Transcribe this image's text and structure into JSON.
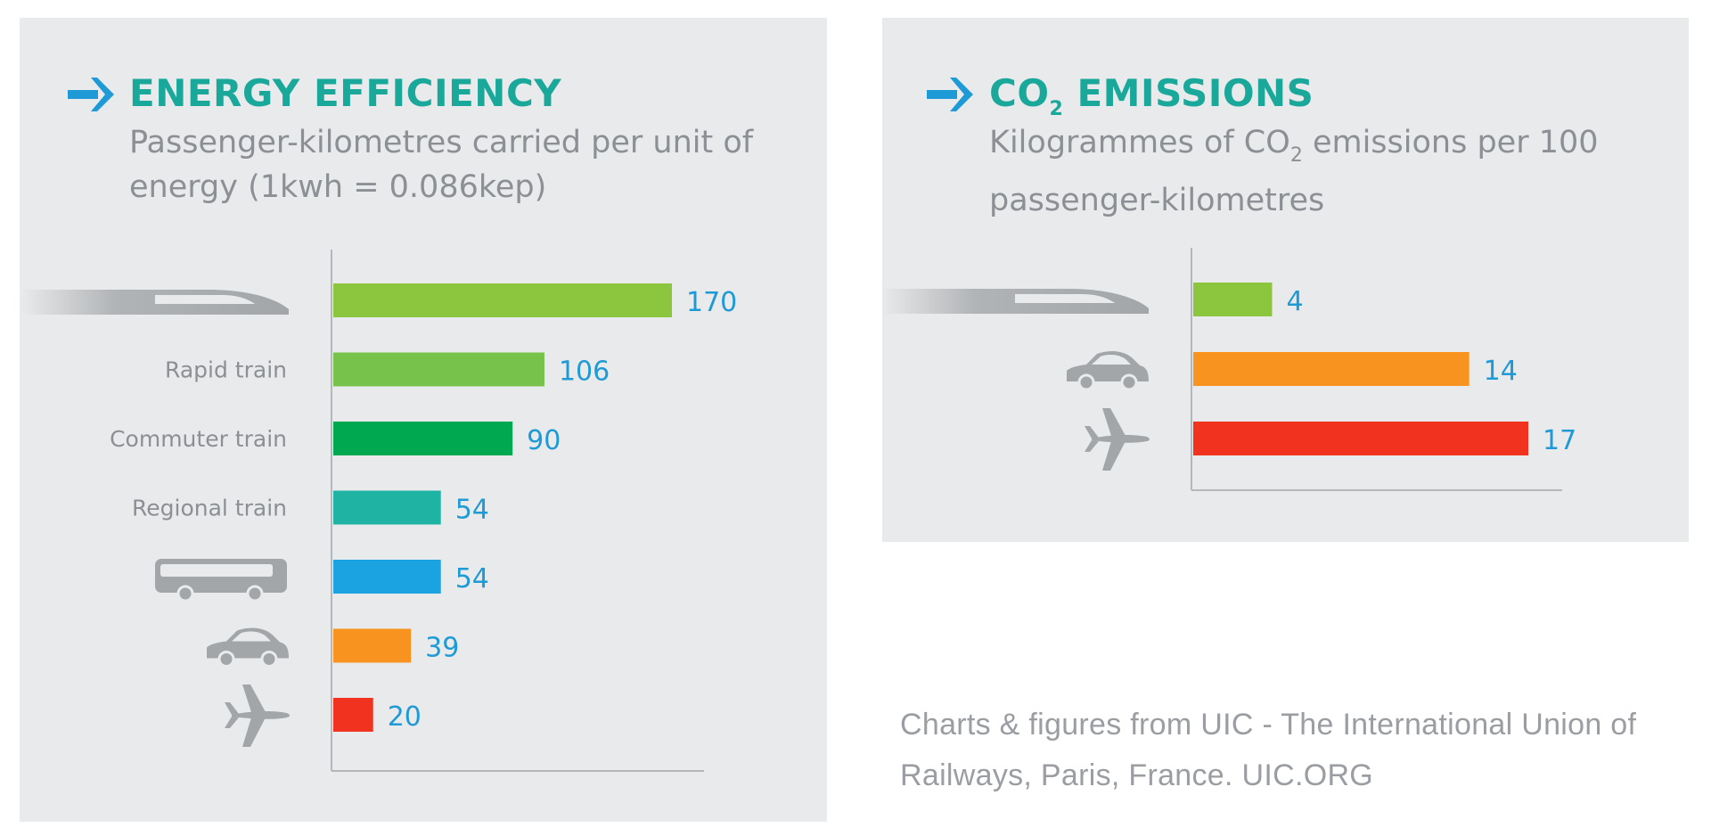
{
  "left_panel": {
    "title": "ENERGY EFFICIENCY",
    "subtitle": "Passenger-kilometres carried per unit of energy (1kwh = 0.086kep)"
  },
  "right_panel": {
    "title_prefix": "CO",
    "title_sub": "2",
    "title_suffix": " EMISSIONS",
    "subtitle_prefix": "Kilogrammes of CO",
    "subtitle_sub": "2",
    "subtitle_suffix": " emissions per 100 passenger-kilometres"
  },
  "source_note": "Charts & figures from UIC - The International Union of Railways, Paris, France.  UIC.ORG",
  "colors": {
    "panel_bg": "#e9eaeb",
    "title": "#1aa89b",
    "arrow": "#1e9ad6",
    "value_label": "#1e9ad6",
    "category_label": "#8c8f93",
    "icon": "#a3a6a9",
    "axis": "#b5b8bb"
  },
  "chart_data": [
    {
      "type": "bar",
      "orientation": "horizontal",
      "title": "ENERGY EFFICIENCY",
      "subtitle": "Passenger-kilometres carried per unit of energy (1kwh = 0.086kep)",
      "categories": [
        {
          "label": "",
          "icon": "high-speed-train-icon"
        },
        {
          "label": "Rapid train",
          "icon": ""
        },
        {
          "label": "Commuter train",
          "icon": ""
        },
        {
          "label": "Regional train",
          "icon": ""
        },
        {
          "label": "",
          "icon": "bus-icon"
        },
        {
          "label": "",
          "icon": "car-icon"
        },
        {
          "label": "",
          "icon": "airplane-icon"
        }
      ],
      "values": [
        170,
        106,
        90,
        54,
        54,
        39,
        20
      ],
      "value_labels": [
        "170",
        "106",
        "90",
        "54",
        "54",
        "39",
        "20"
      ],
      "bar_colors": [
        "#8cc63f",
        "#77c24a",
        "#00a850",
        "#1fb3a3",
        "#1aa3e0",
        "#f7931e",
        "#f0321e"
      ],
      "xlim": [
        0,
        170
      ],
      "grid": false,
      "legend": "none"
    },
    {
      "type": "bar",
      "orientation": "horizontal",
      "title": "CO2 EMISSIONS",
      "subtitle": "Kilogrammes of CO2 emissions per 100 passenger-kilometres",
      "categories": [
        {
          "label": "",
          "icon": "high-speed-train-icon"
        },
        {
          "label": "",
          "icon": "car-icon"
        },
        {
          "label": "",
          "icon": "airplane-icon"
        }
      ],
      "values": [
        4,
        14,
        17
      ],
      "value_labels": [
        "4",
        "14",
        "17"
      ],
      "bar_colors": [
        "#8cc63f",
        "#f7931e",
        "#f0321e"
      ],
      "xlim": [
        0,
        17
      ],
      "grid": false,
      "legend": "none"
    }
  ]
}
